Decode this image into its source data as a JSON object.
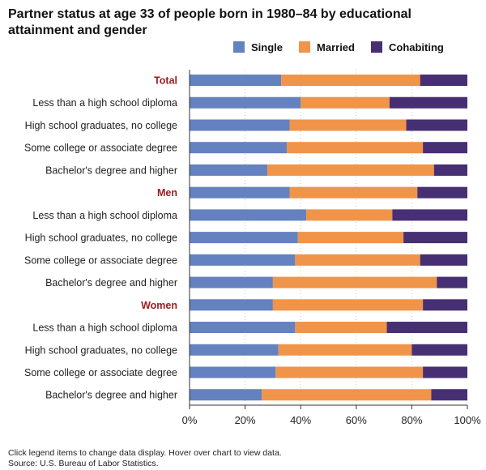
{
  "chart_data": {
    "type": "bar",
    "orientation": "horizontal",
    "stacked": true,
    "title": "Partner status at age 33 of people born in 1980–84 by educational attainment and gender",
    "categories": [
      "Total",
      "Less than a high school diploma",
      "High school graduates, no college",
      "Some college or associate degree",
      "Bachelor's degree and higher",
      "Men",
      "Less than a high school diploma",
      "High school graduates, no college",
      "Some college or associate degree",
      "Bachelor's degree and higher",
      "Women",
      "Less than a high school diploma",
      "High school graduates, no college",
      "Some college or associate degree",
      "Bachelor's degree and higher"
    ],
    "group_header_indices": [
      0,
      5,
      10
    ],
    "series": [
      {
        "name": "Single",
        "color": "#6481c0",
        "values": [
          33,
          40,
          36,
          35,
          28,
          36,
          42,
          39,
          38,
          30,
          30,
          38,
          32,
          31,
          26
        ]
      },
      {
        "name": "Married",
        "color": "#f0944a",
        "values": [
          50,
          32,
          42,
          49,
          60,
          46,
          31,
          38,
          45,
          59,
          54,
          33,
          48,
          53,
          61
        ]
      },
      {
        "name": "Cohabiting",
        "color": "#472f73",
        "values": [
          17,
          28,
          22,
          16,
          12,
          18,
          27,
          23,
          17,
          11,
          16,
          29,
          20,
          16,
          13
        ]
      }
    ],
    "xlim": [
      0,
      100
    ],
    "xticks": [
      "0%",
      "20%",
      "40%",
      "60%",
      "80%",
      "100%"
    ],
    "grid": true,
    "legend_position": "top-right"
  },
  "footnote": {
    "line1": "Click legend items to change data display. Hover over chart to view data.",
    "line2": "Source: U.S. Bureau of Labor Statistics."
  }
}
